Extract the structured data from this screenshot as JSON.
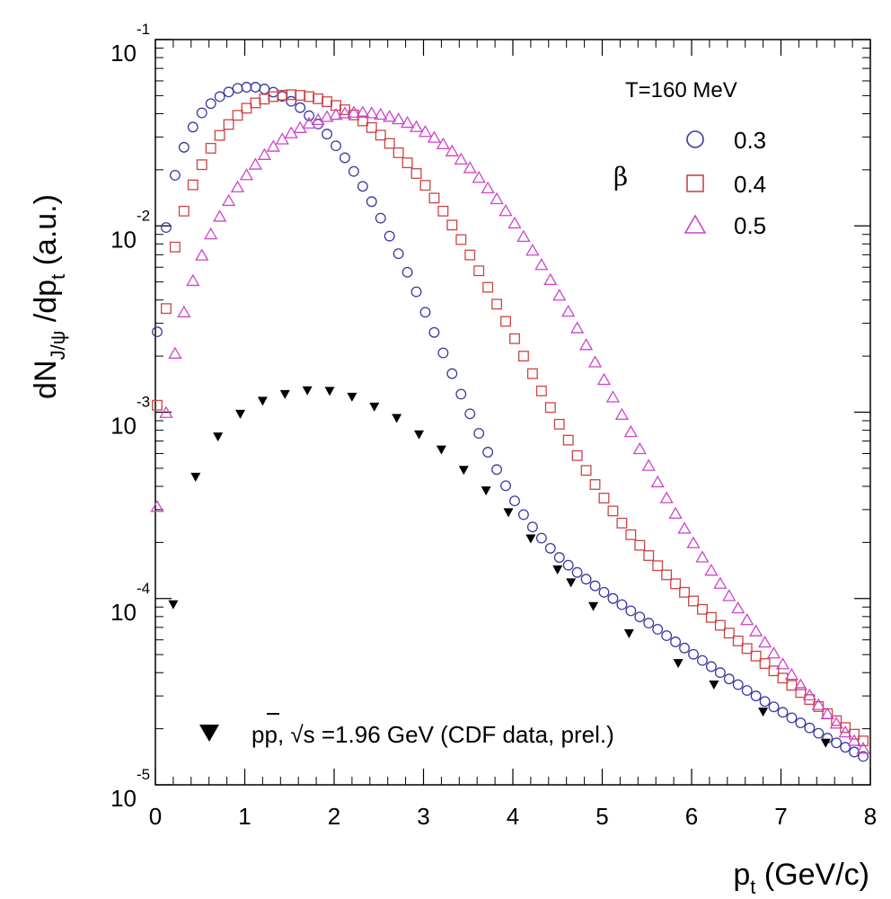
{
  "chart_data": {
    "type": "scatter",
    "xlabel": {
      "main": "p",
      "sub": "t",
      "unit": " (GeV/c)"
    },
    "ylabel": {
      "pre": "dN",
      "sub": "J/ψ",
      "mid": " /dp",
      "sub2": "t",
      "post": " (a.u.)"
    },
    "xlim": [
      0,
      8
    ],
    "ylim": [
      1e-05,
      0.1
    ],
    "y_scale": "log",
    "x_ticks": [
      0,
      1,
      2,
      3,
      4,
      5,
      6,
      7,
      8
    ],
    "y_ticks": [
      {
        "base": "10",
        "exp": "-5",
        "value": 1e-05
      },
      {
        "base": "10",
        "exp": "-4",
        "value": 0.0001
      },
      {
        "base": "10",
        "exp": "-3",
        "value": 0.001
      },
      {
        "base": "10",
        "exp": "-2",
        "value": 0.01
      },
      {
        "base": "10",
        "exp": "-1",
        "value": 0.1
      }
    ],
    "legend": {
      "header": "T=160 MeV",
      "group_label": "β",
      "placement": "top-right"
    },
    "series": [
      {
        "name": "0.3",
        "marker": "circle",
        "color": "#3a3aa0",
        "x": [
          0.02,
          0.12,
          0.22,
          0.32,
          0.42,
          0.52,
          0.62,
          0.72,
          0.82,
          0.92,
          1.02,
          1.12,
          1.22,
          1.32,
          1.42,
          1.52,
          1.62,
          1.72,
          1.82,
          1.92,
          2.02,
          2.12,
          2.22,
          2.32,
          2.42,
          2.52,
          2.62,
          2.72,
          2.82,
          2.92,
          3.02,
          3.12,
          3.22,
          3.32,
          3.42,
          3.52,
          3.62,
          3.72,
          3.82,
          3.92,
          4.02,
          4.12,
          4.22,
          4.32,
          4.42,
          4.52,
          4.62,
          4.72,
          4.82,
          4.92,
          5.02,
          5.12,
          5.22,
          5.32,
          5.42,
          5.52,
          5.62,
          5.72,
          5.82,
          5.92,
          6.02,
          6.12,
          6.22,
          6.32,
          6.42,
          6.52,
          6.62,
          6.72,
          6.82,
          6.92,
          7.02,
          7.12,
          7.22,
          7.32,
          7.42,
          7.52,
          7.62,
          7.72,
          7.82,
          7.92
        ],
        "y": [
          0.0027,
          0.0098,
          0.0187,
          0.0264,
          0.0339,
          0.0404,
          0.0453,
          0.0494,
          0.0523,
          0.0547,
          0.0555,
          0.0555,
          0.0543,
          0.0522,
          0.0496,
          0.0466,
          0.0431,
          0.039,
          0.0352,
          0.0311,
          0.0269,
          0.0232,
          0.0196,
          0.0163,
          0.0135,
          0.011,
          0.00881,
          0.00709,
          0.00564,
          0.00443,
          0.00344,
          0.00268,
          0.00208,
          0.00161,
          0.00125,
          0.00098,
          0.00077,
          0.00061,
          0.000492,
          0.000403,
          0.000334,
          0.000282,
          0.000242,
          0.000211,
          0.000186,
          0.000166,
          0.000151,
          0.000138,
          0.000127,
          0.000117,
          0.000108,
          0.0001,
          9.27e-05,
          8.59e-05,
          7.96e-05,
          7.38e-05,
          6.84e-05,
          6.32e-05,
          5.85e-05,
          5.42e-05,
          5.02e-05,
          4.65e-05,
          4.31e-05,
          4e-05,
          3.7e-05,
          3.45e-05,
          3.21e-05,
          3e-05,
          2.8e-05,
          2.62e-05,
          2.45e-05,
          2.29e-05,
          2.15e-05,
          2.02e-05,
          1.89e-05,
          1.78e-05,
          1.68e-05,
          1.59e-05,
          1.5e-05,
          1.42e-05
        ]
      },
      {
        "name": "0.4",
        "marker": "square",
        "color": "#cc4444",
        "x": [
          0.02,
          0.12,
          0.22,
          0.32,
          0.42,
          0.52,
          0.62,
          0.72,
          0.82,
          0.92,
          1.02,
          1.12,
          1.22,
          1.32,
          1.42,
          1.52,
          1.62,
          1.72,
          1.82,
          1.92,
          2.02,
          2.12,
          2.22,
          2.32,
          2.42,
          2.52,
          2.62,
          2.72,
          2.82,
          2.92,
          3.02,
          3.12,
          3.22,
          3.32,
          3.42,
          3.52,
          3.62,
          3.72,
          3.82,
          3.92,
          4.02,
          4.12,
          4.22,
          4.32,
          4.42,
          4.52,
          4.62,
          4.72,
          4.82,
          4.92,
          5.02,
          5.12,
          5.22,
          5.32,
          5.42,
          5.52,
          5.62,
          5.72,
          5.82,
          5.92,
          6.02,
          6.12,
          6.22,
          6.32,
          6.42,
          6.52,
          6.62,
          6.72,
          6.82,
          6.92,
          7.02,
          7.12,
          7.22,
          7.32,
          7.42,
          7.52,
          7.62,
          7.72,
          7.82,
          7.92
        ],
        "y": [
          0.00109,
          0.0036,
          0.0077,
          0.012,
          0.0166,
          0.0213,
          0.0261,
          0.0306,
          0.035,
          0.0392,
          0.0428,
          0.0457,
          0.0479,
          0.0494,
          0.0503,
          0.0506,
          0.0502,
          0.0494,
          0.0481,
          0.0464,
          0.0443,
          0.042,
          0.0394,
          0.0366,
          0.0337,
          0.0307,
          0.0277,
          0.0247,
          0.0218,
          0.0191,
          0.0165,
          0.0141,
          0.012,
          0.0101,
          0.00844,
          0.00698,
          0.00574,
          0.00468,
          0.0038,
          0.00307,
          0.00248,
          0.002,
          0.00161,
          0.0013,
          0.00106,
          0.000862,
          0.000708,
          0.000585,
          0.000487,
          0.000409,
          0.000346,
          0.000295,
          0.000254,
          0.00022,
          0.000193,
          0.00017,
          0.00015,
          0.000134,
          0.00012,
          0.000108,
          9.7e-05,
          8.75e-05,
          7.92e-05,
          7.18e-05,
          6.52e-05,
          5.92e-05,
          5.39e-05,
          4.91e-05,
          4.48e-05,
          4.09e-05,
          3.74e-05,
          3.42e-05,
          3.13e-05,
          2.87e-05,
          2.63e-05,
          2.41e-05,
          2.21e-05,
          2.03e-05,
          1.87e-05,
          1.72e-05
        ]
      },
      {
        "name": "0.5",
        "marker": "triangle",
        "color": "#cc44cc",
        "x": [
          0.02,
          0.12,
          0.22,
          0.32,
          0.42,
          0.52,
          0.62,
          0.72,
          0.82,
          0.92,
          1.02,
          1.12,
          1.22,
          1.32,
          1.42,
          1.52,
          1.62,
          1.72,
          1.82,
          1.92,
          2.02,
          2.12,
          2.22,
          2.32,
          2.42,
          2.52,
          2.62,
          2.72,
          2.82,
          2.92,
          3.02,
          3.12,
          3.22,
          3.32,
          3.42,
          3.52,
          3.62,
          3.72,
          3.82,
          3.92,
          4.02,
          4.12,
          4.22,
          4.32,
          4.42,
          4.52,
          4.62,
          4.72,
          4.82,
          4.92,
          5.02,
          5.12,
          5.22,
          5.32,
          5.42,
          5.52,
          5.62,
          5.72,
          5.82,
          5.92,
          6.02,
          6.12,
          6.22,
          6.32,
          6.42,
          6.52,
          6.62,
          6.72,
          6.82,
          6.92,
          7.02,
          7.12,
          7.22,
          7.32,
          7.42,
          7.52,
          7.62,
          7.72,
          7.82,
          7.92
        ],
        "y": [
          0.00031,
          0.00099,
          0.00206,
          0.00343,
          0.00506,
          0.00693,
          0.009,
          0.0112,
          0.0136,
          0.0161,
          0.0187,
          0.0213,
          0.024,
          0.0266,
          0.0291,
          0.0314,
          0.0335,
          0.0354,
          0.037,
          0.0384,
          0.0394,
          0.0401,
          0.0405,
          0.0405,
          0.0402,
          0.0395,
          0.0385,
          0.0373,
          0.0357,
          0.0339,
          0.0319,
          0.0297,
          0.0274,
          0.0251,
          0.0227,
          0.0204,
          0.0181,
          0.0159,
          0.0139,
          0.012,
          0.0103,
          0.00873,
          0.00736,
          0.00616,
          0.00512,
          0.00422,
          0.00346,
          0.00282,
          0.00229,
          0.00185,
          0.00149,
          0.0012,
          0.000968,
          0.000782,
          0.000633,
          0.000515,
          0.00042,
          0.000345,
          0.000285,
          0.000237,
          0.000198,
          0.000166,
          0.000141,
          0.00012,
          0.000103,
          8.85e-05,
          7.66e-05,
          6.66e-05,
          5.8e-05,
          5.07e-05,
          4.43e-05,
          3.89e-05,
          3.42e-05,
          3.02e-05,
          2.68e-05,
          2.39e-05,
          2.13e-05,
          1.91e-05,
          1.72e-05,
          1.56e-05
        ]
      },
      {
        "name": "pp, √s =1.96 GeV (CDF data, prel.)",
        "marker": "triangle-down-filled",
        "color": "#000000",
        "x": [
          0.2,
          0.45,
          0.7,
          0.95,
          1.2,
          1.45,
          1.7,
          1.95,
          2.2,
          2.45,
          2.7,
          2.95,
          3.2,
          3.45,
          3.7,
          3.95,
          4.2,
          4.5,
          4.65,
          4.9,
          5.3,
          5.85,
          6.25,
          6.8,
          7.5
        ],
        "y": [
          9.3e-05,
          0.00045,
          0.00074,
          0.00098,
          0.00115,
          0.00125,
          0.00131,
          0.0013,
          0.00121,
          0.00107,
          0.00093,
          0.00076,
          0.00063,
          0.00049,
          0.00038,
          0.00029,
          0.00021,
          0.000143,
          0.000122,
          9.1e-05,
          6.5e-05,
          4.5e-05,
          3.45e-05,
          2.47e-05,
          1.68e-05
        ]
      }
    ]
  },
  "cdf_label": {
    "p1": "p",
    "p2": "p",
    "rest": ", √s =1.96 GeV (CDF data, prel.)"
  }
}
